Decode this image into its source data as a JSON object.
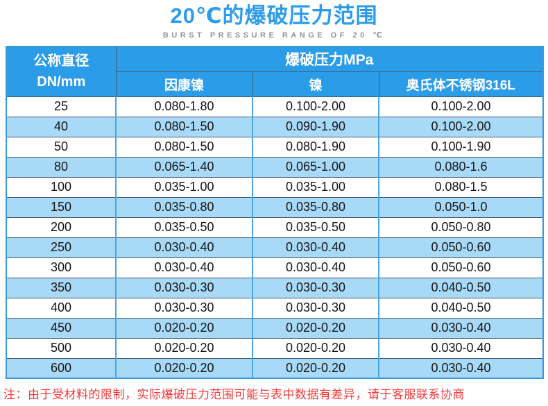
{
  "page": {
    "title": "20℃的爆破压力范围",
    "subtitle": "BURST PRESSURE RANGE OF 20 ℃"
  },
  "table": {
    "diameter_header": {
      "line1": "公称直径",
      "line2": "DN/mm"
    },
    "pressure_group_header": "爆破压力MPa",
    "material_headers": [
      "因康镍",
      "镍",
      "奥氏体不锈钢316L"
    ],
    "rows": [
      {
        "dn": "25",
        "inconel": "0.080-1.80",
        "nickel": "0.100-2.00",
        "ss316l": "0.100-2.00"
      },
      {
        "dn": "40",
        "inconel": "0.080-1.50",
        "nickel": "0.090-1.90",
        "ss316l": "0.100-2.00"
      },
      {
        "dn": "50",
        "inconel": "0.080-1.50",
        "nickel": "0.080-1.90",
        "ss316l": "0.100-1.90"
      },
      {
        "dn": "80",
        "inconel": "0.065-1.40",
        "nickel": "0.065-1.00",
        "ss316l": "0.080-1.6"
      },
      {
        "dn": "100",
        "inconel": "0.035-1.00",
        "nickel": "0.035-1.00",
        "ss316l": "0.080-1.5"
      },
      {
        "dn": "150",
        "inconel": "0.035-0.80",
        "nickel": "0.035-0.80",
        "ss316l": "0.050-1.0"
      },
      {
        "dn": "200",
        "inconel": "0.035-0.50",
        "nickel": "0.035-0.50",
        "ss316l": "0.050-0.80"
      },
      {
        "dn": "250",
        "inconel": "0.030-0.40",
        "nickel": "0.030-0.40",
        "ss316l": "0.050-0.60"
      },
      {
        "dn": "300",
        "inconel": "0.030-0.40",
        "nickel": "0.030-0.40",
        "ss316l": "0.050-0.60"
      },
      {
        "dn": "350",
        "inconel": "0.030-0.30",
        "nickel": "0.030-0.30",
        "ss316l": "0.040-0.50"
      },
      {
        "dn": "400",
        "inconel": "0.030-0.30",
        "nickel": "0.030-0.30",
        "ss316l": "0.040-0.50"
      },
      {
        "dn": "450",
        "inconel": "0.020-0.20",
        "nickel": "0.020-0.20",
        "ss316l": "0.030-0.40"
      },
      {
        "dn": "500",
        "inconel": "0.020-0.20",
        "nickel": "0.020-0.20",
        "ss316l": "0.030-0.40"
      },
      {
        "dn": "600",
        "inconel": "0.020-0.20",
        "nickel": "0.020-0.20",
        "ss316l": "0.030-0.40"
      }
    ]
  },
  "note": {
    "prefix": "注：",
    "text": "由于受材料的限制，实际爆破压力范围可能与表中数据有差异，请于客服联系协商"
  },
  "colors": {
    "header_blue": "#2b9ce8",
    "zebra_blue": "#a8daf8",
    "title_blue": "#2d9ce9",
    "note_red": "#f13a3a",
    "border_dark": "#42586d",
    "border_blue": "#49a5e9"
  }
}
